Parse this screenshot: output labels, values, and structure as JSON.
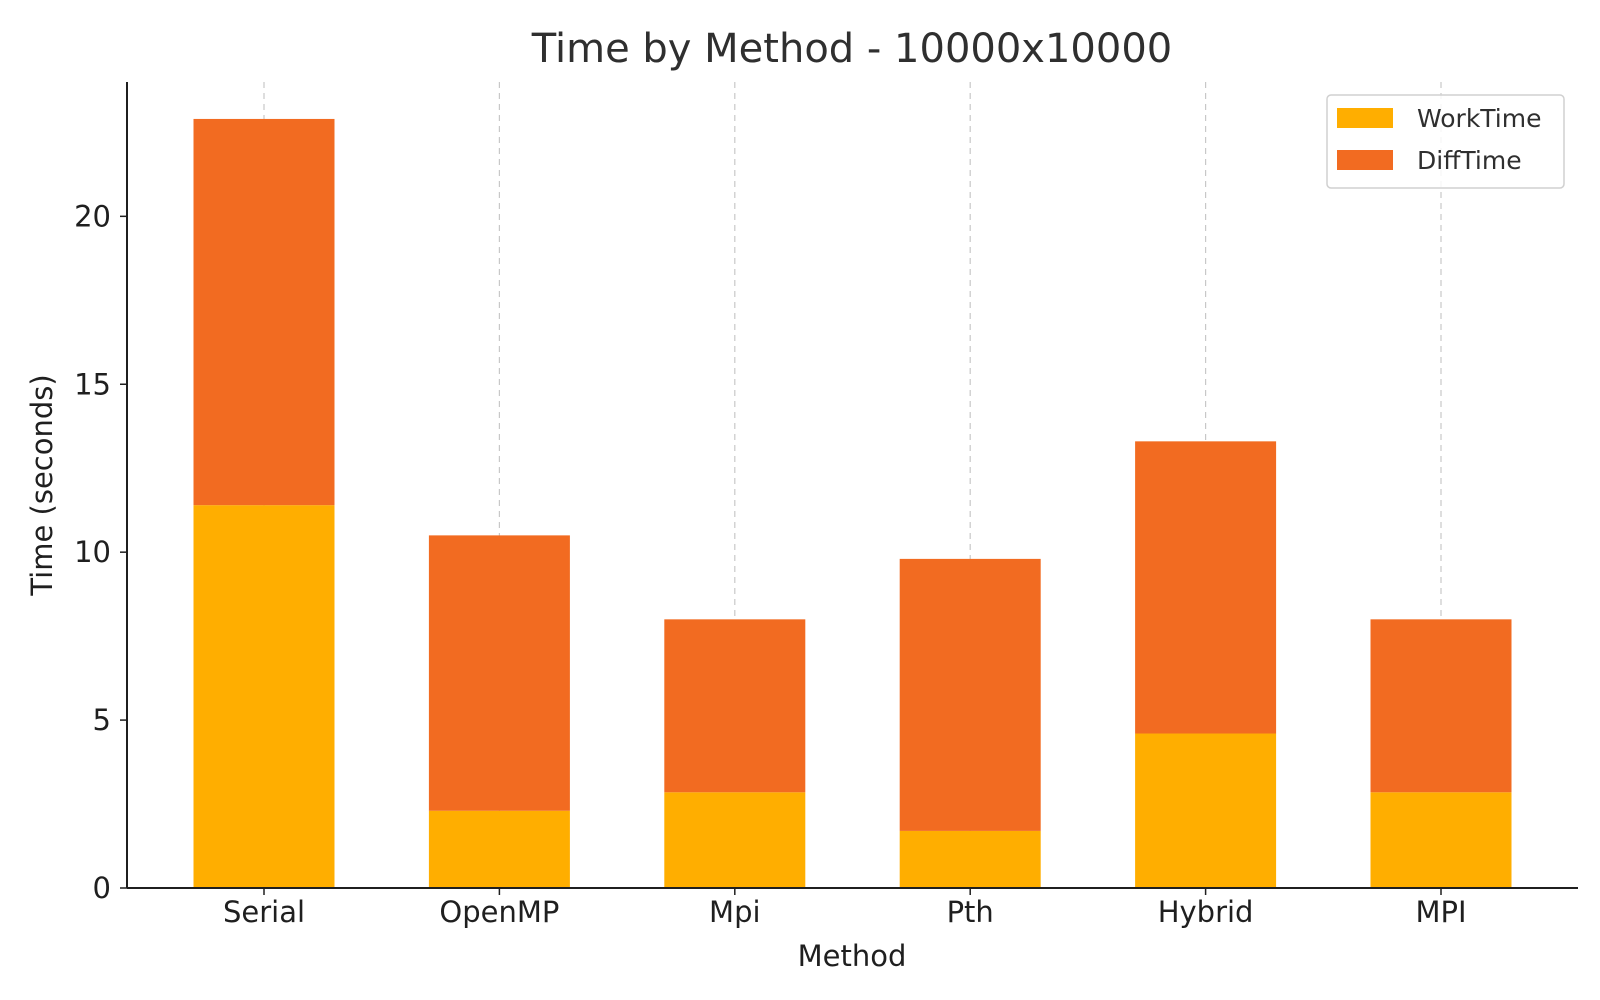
{
  "chart_data": {
    "type": "bar",
    "stacked": true,
    "title": "Time by Method - 10000x10000",
    "xlabel": "Method",
    "ylabel": "Time (seconds)",
    "categories": [
      "Serial",
      "OpenMP",
      "Mpi",
      "Pth",
      "Hybrid",
      "MPI"
    ],
    "series": [
      {
        "name": "WorkTime",
        "color": "#FFAE00",
        "values": [
          11.4,
          2.3,
          2.85,
          1.7,
          4.6,
          2.85
        ]
      },
      {
        "name": "DiffTime",
        "color": "#F26B21",
        "values": [
          11.5,
          8.2,
          5.15,
          8.1,
          8.7,
          5.15
        ]
      }
    ],
    "ylim": [
      0,
      24
    ],
    "yticks": [
      0,
      5,
      10,
      15,
      20
    ],
    "grid": "vertical dashed",
    "legend_position": "top-right"
  }
}
